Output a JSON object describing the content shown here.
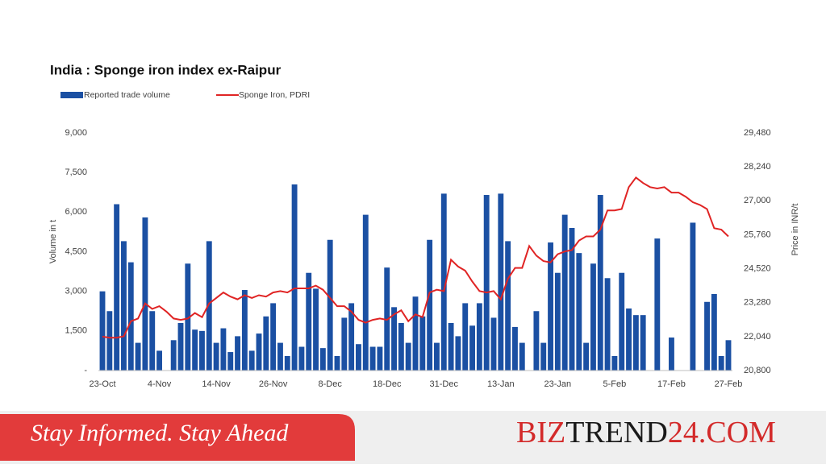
{
  "chart_data": {
    "type": "bar-line",
    "title": "India : Sponge iron index ex-Raipur",
    "ylabel": "Volume in t",
    "y2label": "Price in INR/t",
    "categories": [
      "23-Oct",
      null,
      null,
      null,
      null,
      null,
      null,
      null,
      "4-Nov",
      null,
      null,
      null,
      null,
      null,
      null,
      null,
      "14-Nov",
      null,
      null,
      null,
      null,
      null,
      null,
      null,
      "26-Nov",
      null,
      null,
      null,
      null,
      null,
      null,
      null,
      "8-Dec",
      null,
      null,
      null,
      null,
      null,
      null,
      null,
      "18-Dec",
      null,
      null,
      null,
      null,
      null,
      null,
      null,
      "31-Dec",
      null,
      null,
      null,
      null,
      null,
      null,
      null,
      "13-Jan",
      null,
      null,
      null,
      null,
      null,
      null,
      null,
      "23-Jan",
      null,
      null,
      null,
      null,
      null,
      null,
      null,
      "5-Feb",
      null,
      null,
      null,
      null,
      null,
      null,
      null,
      "17-Feb",
      null,
      null,
      null,
      null,
      null,
      null,
      null,
      "27-Feb"
    ],
    "series": [
      {
        "name": "Reported trade volume",
        "type": "bar",
        "color": "#1b50a3",
        "values": [
          3000,
          2250,
          6300,
          4900,
          4100,
          1050,
          5800,
          2250,
          750,
          null,
          1150,
          1800,
          4050,
          1550,
          1500,
          4900,
          1050,
          1600,
          700,
          1300,
          3050,
          750,
          1400,
          2050,
          2550,
          1050,
          550,
          7050,
          900,
          3700,
          3100,
          850,
          4950,
          550,
          2000,
          2550,
          1000,
          5900,
          900,
          900,
          3900,
          2400,
          1800,
          1050,
          2800,
          2050,
          4950,
          1050,
          6700,
          1800,
          1300,
          2550,
          1700,
          2550,
          6650,
          2000,
          6700,
          4900,
          1650,
          1050,
          null,
          2250,
          1050,
          4850,
          3700,
          5900,
          5400,
          4450,
          1050,
          4050,
          6650,
          3500,
          550,
          3700,
          2350,
          2100,
          2100,
          null,
          5000,
          null,
          1250,
          null,
          null,
          5600,
          null,
          2600,
          2900,
          550,
          1150
        ]
      },
      {
        "name": "Sponge Iron, PDRI",
        "type": "line",
        "axis": "y2",
        "color": "#e02424",
        "values": [
          22040,
          22000,
          22000,
          22050,
          22600,
          22700,
          23250,
          23050,
          23150,
          22950,
          22700,
          22650,
          22700,
          22900,
          22750,
          23250,
          23450,
          23650,
          23500,
          23400,
          23550,
          23450,
          23550,
          23500,
          23650,
          23700,
          23650,
          23800,
          23800,
          23800,
          23900,
          23750,
          23450,
          23150,
          23150,
          22950,
          22650,
          22550,
          22650,
          22700,
          22650,
          22850,
          23000,
          22600,
          22850,
          22750,
          23650,
          23750,
          23700,
          24850,
          24600,
          24450,
          24050,
          23700,
          23650,
          23700,
          23400,
          24150,
          24550,
          24550,
          25350,
          25000,
          24800,
          24750,
          25050,
          25150,
          25200,
          25550,
          25700,
          25700,
          25950,
          26650,
          26650,
          26700,
          27500,
          27850,
          27650,
          27500,
          27450,
          27500,
          27300,
          27300,
          27150,
          26950,
          26850,
          26700,
          26000,
          25950,
          25700
        ]
      }
    ],
    "ylim": [
      0,
      9000
    ],
    "yticks": [
      {
        "value": 0,
        "label": "-"
      },
      {
        "value": 1500,
        "label": "1,500"
      },
      {
        "value": 3000,
        "label": "3,000"
      },
      {
        "value": 4500,
        "label": "4,500"
      },
      {
        "value": 6000,
        "label": "6,000"
      },
      {
        "value": 7500,
        "label": "7,500"
      },
      {
        "value": 9000,
        "label": "9,000"
      }
    ],
    "y2lim": [
      20800,
      29480
    ],
    "y2ticks": [
      {
        "value": 20800,
        "label": "20,800"
      },
      {
        "value": 22040,
        "label": "22,040"
      },
      {
        "value": 23280,
        "label": "23,280"
      },
      {
        "value": 24520,
        "label": "24,520"
      },
      {
        "value": 25760,
        "label": "25,760"
      },
      {
        "value": 27000,
        "label": "27,000"
      },
      {
        "value": 28240,
        "label": "28,240"
      },
      {
        "value": 29480,
        "label": "29,480"
      }
    ],
    "grid": false,
    "legend": "top-left"
  },
  "footer": {
    "slogan": "Stay Informed. Stay Ahead",
    "brand": [
      "BIZ",
      "TREND",
      "24.COM"
    ]
  }
}
